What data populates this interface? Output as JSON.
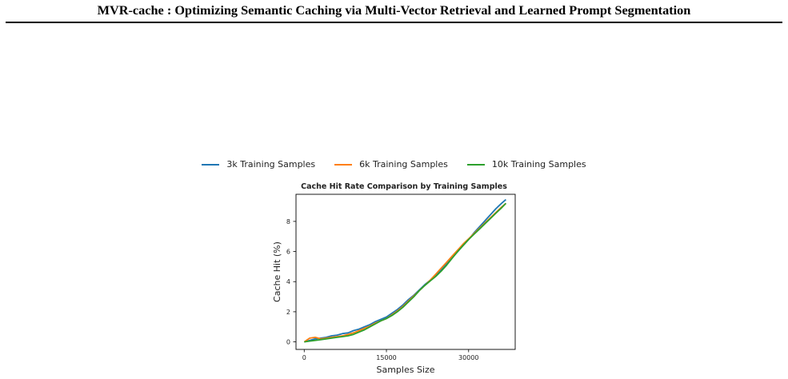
{
  "paper": {
    "title": "MVR-cache : Optimizing Semantic Caching via Multi-Vector Retrieval and Learned Prompt Segmentation"
  },
  "chart_data": {
    "type": "line",
    "title": "Cache Hit Rate Comparison by Training Samples",
    "xlabel": "Samples Size",
    "ylabel": "Cache Hit (%)",
    "xlim": [
      -1500,
      38500
    ],
    "ylim": [
      -0.5,
      9.8
    ],
    "xticks": [
      0,
      15000,
      30000
    ],
    "xtick_labels": [
      "0",
      "15000",
      "30000"
    ],
    "yticks": [
      0,
      2,
      4,
      6,
      8
    ],
    "ytick_labels": [
      "0",
      "2",
      "4",
      "6",
      "8"
    ],
    "grid": false,
    "legend_position": "top-center",
    "series": [
      {
        "name": "3k Training Samples",
        "color": "#1f77b4",
        "x": [
          0,
          1000,
          2000,
          3000,
          4000,
          5000,
          6000,
          7000,
          8000,
          9000,
          10000,
          11000,
          12000,
          13000,
          14000,
          15000,
          16000,
          17000,
          18000,
          19000,
          20000,
          21000,
          22000,
          23000,
          24000,
          25000,
          26000,
          27000,
          28000,
          29000,
          30000,
          31000,
          32000,
          33000,
          34000,
          35000,
          36000,
          36800
        ],
        "y": [
          0.0,
          0.1,
          0.2,
          0.25,
          0.3,
          0.4,
          0.45,
          0.55,
          0.6,
          0.75,
          0.85,
          1.0,
          1.15,
          1.35,
          1.5,
          1.65,
          1.9,
          2.15,
          2.45,
          2.8,
          3.1,
          3.45,
          3.8,
          4.1,
          4.45,
          4.8,
          5.2,
          5.6,
          6.0,
          6.4,
          6.8,
          7.25,
          7.65,
          8.05,
          8.45,
          8.85,
          9.2,
          9.45
        ]
      },
      {
        "name": "6k Training Samples",
        "color": "#ff7f0e",
        "x": [
          0,
          1000,
          2000,
          3000,
          4000,
          5000,
          6000,
          7000,
          8000,
          9000,
          10000,
          11000,
          12000,
          13000,
          14000,
          15000,
          16000,
          17000,
          18000,
          19000,
          20000,
          21000,
          22000,
          23000,
          24000,
          25000,
          26000,
          27000,
          28000,
          29000,
          30000,
          31000,
          32000,
          33000,
          34000,
          35000,
          36000,
          36800
        ],
        "y": [
          0.0,
          0.25,
          0.3,
          0.2,
          0.25,
          0.3,
          0.35,
          0.4,
          0.5,
          0.6,
          0.75,
          0.9,
          1.05,
          1.25,
          1.4,
          1.55,
          1.8,
          2.05,
          2.35,
          2.7,
          3.05,
          3.4,
          3.75,
          4.1,
          4.5,
          4.9,
          5.3,
          5.7,
          6.1,
          6.5,
          6.85,
          7.2,
          7.55,
          7.9,
          8.25,
          8.6,
          8.95,
          9.2
        ]
      },
      {
        "name": "10k Training Samples",
        "color": "#2ca02c",
        "x": [
          0,
          1000,
          2000,
          3000,
          4000,
          5000,
          6000,
          7000,
          8000,
          9000,
          10000,
          11000,
          12000,
          13000,
          14000,
          15000,
          16000,
          17000,
          18000,
          19000,
          20000,
          21000,
          22000,
          23000,
          24000,
          25000,
          26000,
          27000,
          28000,
          29000,
          30000,
          31000,
          32000,
          33000,
          34000,
          35000,
          36000,
          36800
        ],
        "y": [
          0.0,
          0.05,
          0.1,
          0.15,
          0.2,
          0.25,
          0.3,
          0.35,
          0.4,
          0.5,
          0.65,
          0.8,
          1.0,
          1.2,
          1.4,
          1.55,
          1.75,
          2.0,
          2.3,
          2.65,
          3.0,
          3.4,
          3.75,
          4.05,
          4.35,
          4.7,
          5.1,
          5.55,
          6.0,
          6.4,
          6.8,
          7.15,
          7.5,
          7.85,
          8.2,
          8.55,
          8.9,
          9.2
        ]
      }
    ]
  }
}
